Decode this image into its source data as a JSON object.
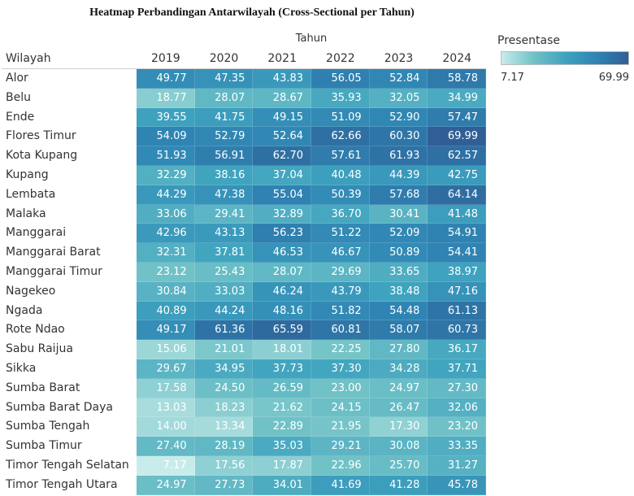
{
  "chart_data": {
    "type": "heatmap",
    "title": "Heatmap Perbandingan Antarwilayah (Cross-Sectional per Tahun)",
    "column_group_label": "Tahun",
    "row_header": "Wilayah",
    "x": [
      "2019",
      "2020",
      "2021",
      "2022",
      "2023",
      "2024"
    ],
    "y": [
      "Alor",
      "Belu",
      "Ende",
      "Flores Timur",
      "Kota Kupang",
      "Kupang",
      "Lembata",
      "Malaka",
      "Manggarai",
      "Manggarai Barat",
      "Manggarai Timur",
      "Nagekeo",
      "Ngada",
      "Rote Ndao",
      "Sabu Raijua",
      "Sikka",
      "Sumba Barat",
      "Sumba Barat Daya",
      "Sumba Tengah",
      "Sumba Timur",
      "Timor Tengah Selatan",
      "Timor Tengah Utara"
    ],
    "values": [
      [
        49.77,
        47.35,
        43.83,
        56.05,
        52.84,
        58.78
      ],
      [
        18.77,
        28.07,
        28.67,
        35.93,
        32.05,
        34.99
      ],
      [
        39.55,
        41.75,
        49.15,
        51.09,
        52.9,
        57.47
      ],
      [
        54.09,
        52.79,
        52.64,
        62.66,
        60.3,
        69.99
      ],
      [
        51.93,
        56.91,
        62.7,
        57.61,
        61.93,
        62.57
      ],
      [
        32.29,
        38.16,
        37.04,
        40.48,
        44.39,
        42.75
      ],
      [
        44.29,
        47.38,
        55.04,
        50.39,
        57.68,
        64.14
      ],
      [
        33.06,
        29.41,
        32.89,
        36.7,
        30.41,
        41.48
      ],
      [
        42.96,
        43.13,
        56.23,
        51.22,
        52.09,
        54.91
      ],
      [
        32.31,
        37.81,
        46.53,
        46.67,
        50.89,
        54.41
      ],
      [
        23.12,
        25.43,
        28.07,
        29.69,
        33.65,
        38.97
      ],
      [
        30.84,
        33.03,
        46.24,
        43.79,
        38.48,
        47.16
      ],
      [
        40.89,
        44.24,
        48.16,
        51.82,
        54.48,
        61.13
      ],
      [
        49.17,
        61.36,
        65.59,
        60.81,
        58.07,
        60.73
      ],
      [
        15.06,
        21.01,
        18.01,
        22.25,
        27.8,
        36.17
      ],
      [
        29.67,
        34.95,
        37.73,
        37.3,
        34.28,
        37.71
      ],
      [
        17.58,
        24.5,
        26.59,
        23.0,
        24.97,
        27.3
      ],
      [
        13.03,
        18.23,
        21.62,
        24.15,
        26.47,
        32.06
      ],
      [
        14.0,
        13.34,
        22.89,
        21.95,
        17.3,
        23.2
      ],
      [
        27.4,
        28.19,
        35.03,
        29.21,
        30.08,
        33.35
      ],
      [
        7.17,
        17.56,
        17.87,
        22.96,
        25.7,
        31.27
      ],
      [
        24.97,
        27.73,
        34.01,
        41.69,
        41.28,
        45.78
      ]
    ],
    "legend": {
      "title": "Presentase",
      "min": 7.17,
      "max": 69.99,
      "min_label": "7.17",
      "max_label": "69.99",
      "placement": "top-right"
    },
    "colorscale": [
      "#c8ecea",
      "#71c2c7",
      "#3fa3bf",
      "#2f84b3",
      "#2f5f96"
    ],
    "grid": false
  }
}
